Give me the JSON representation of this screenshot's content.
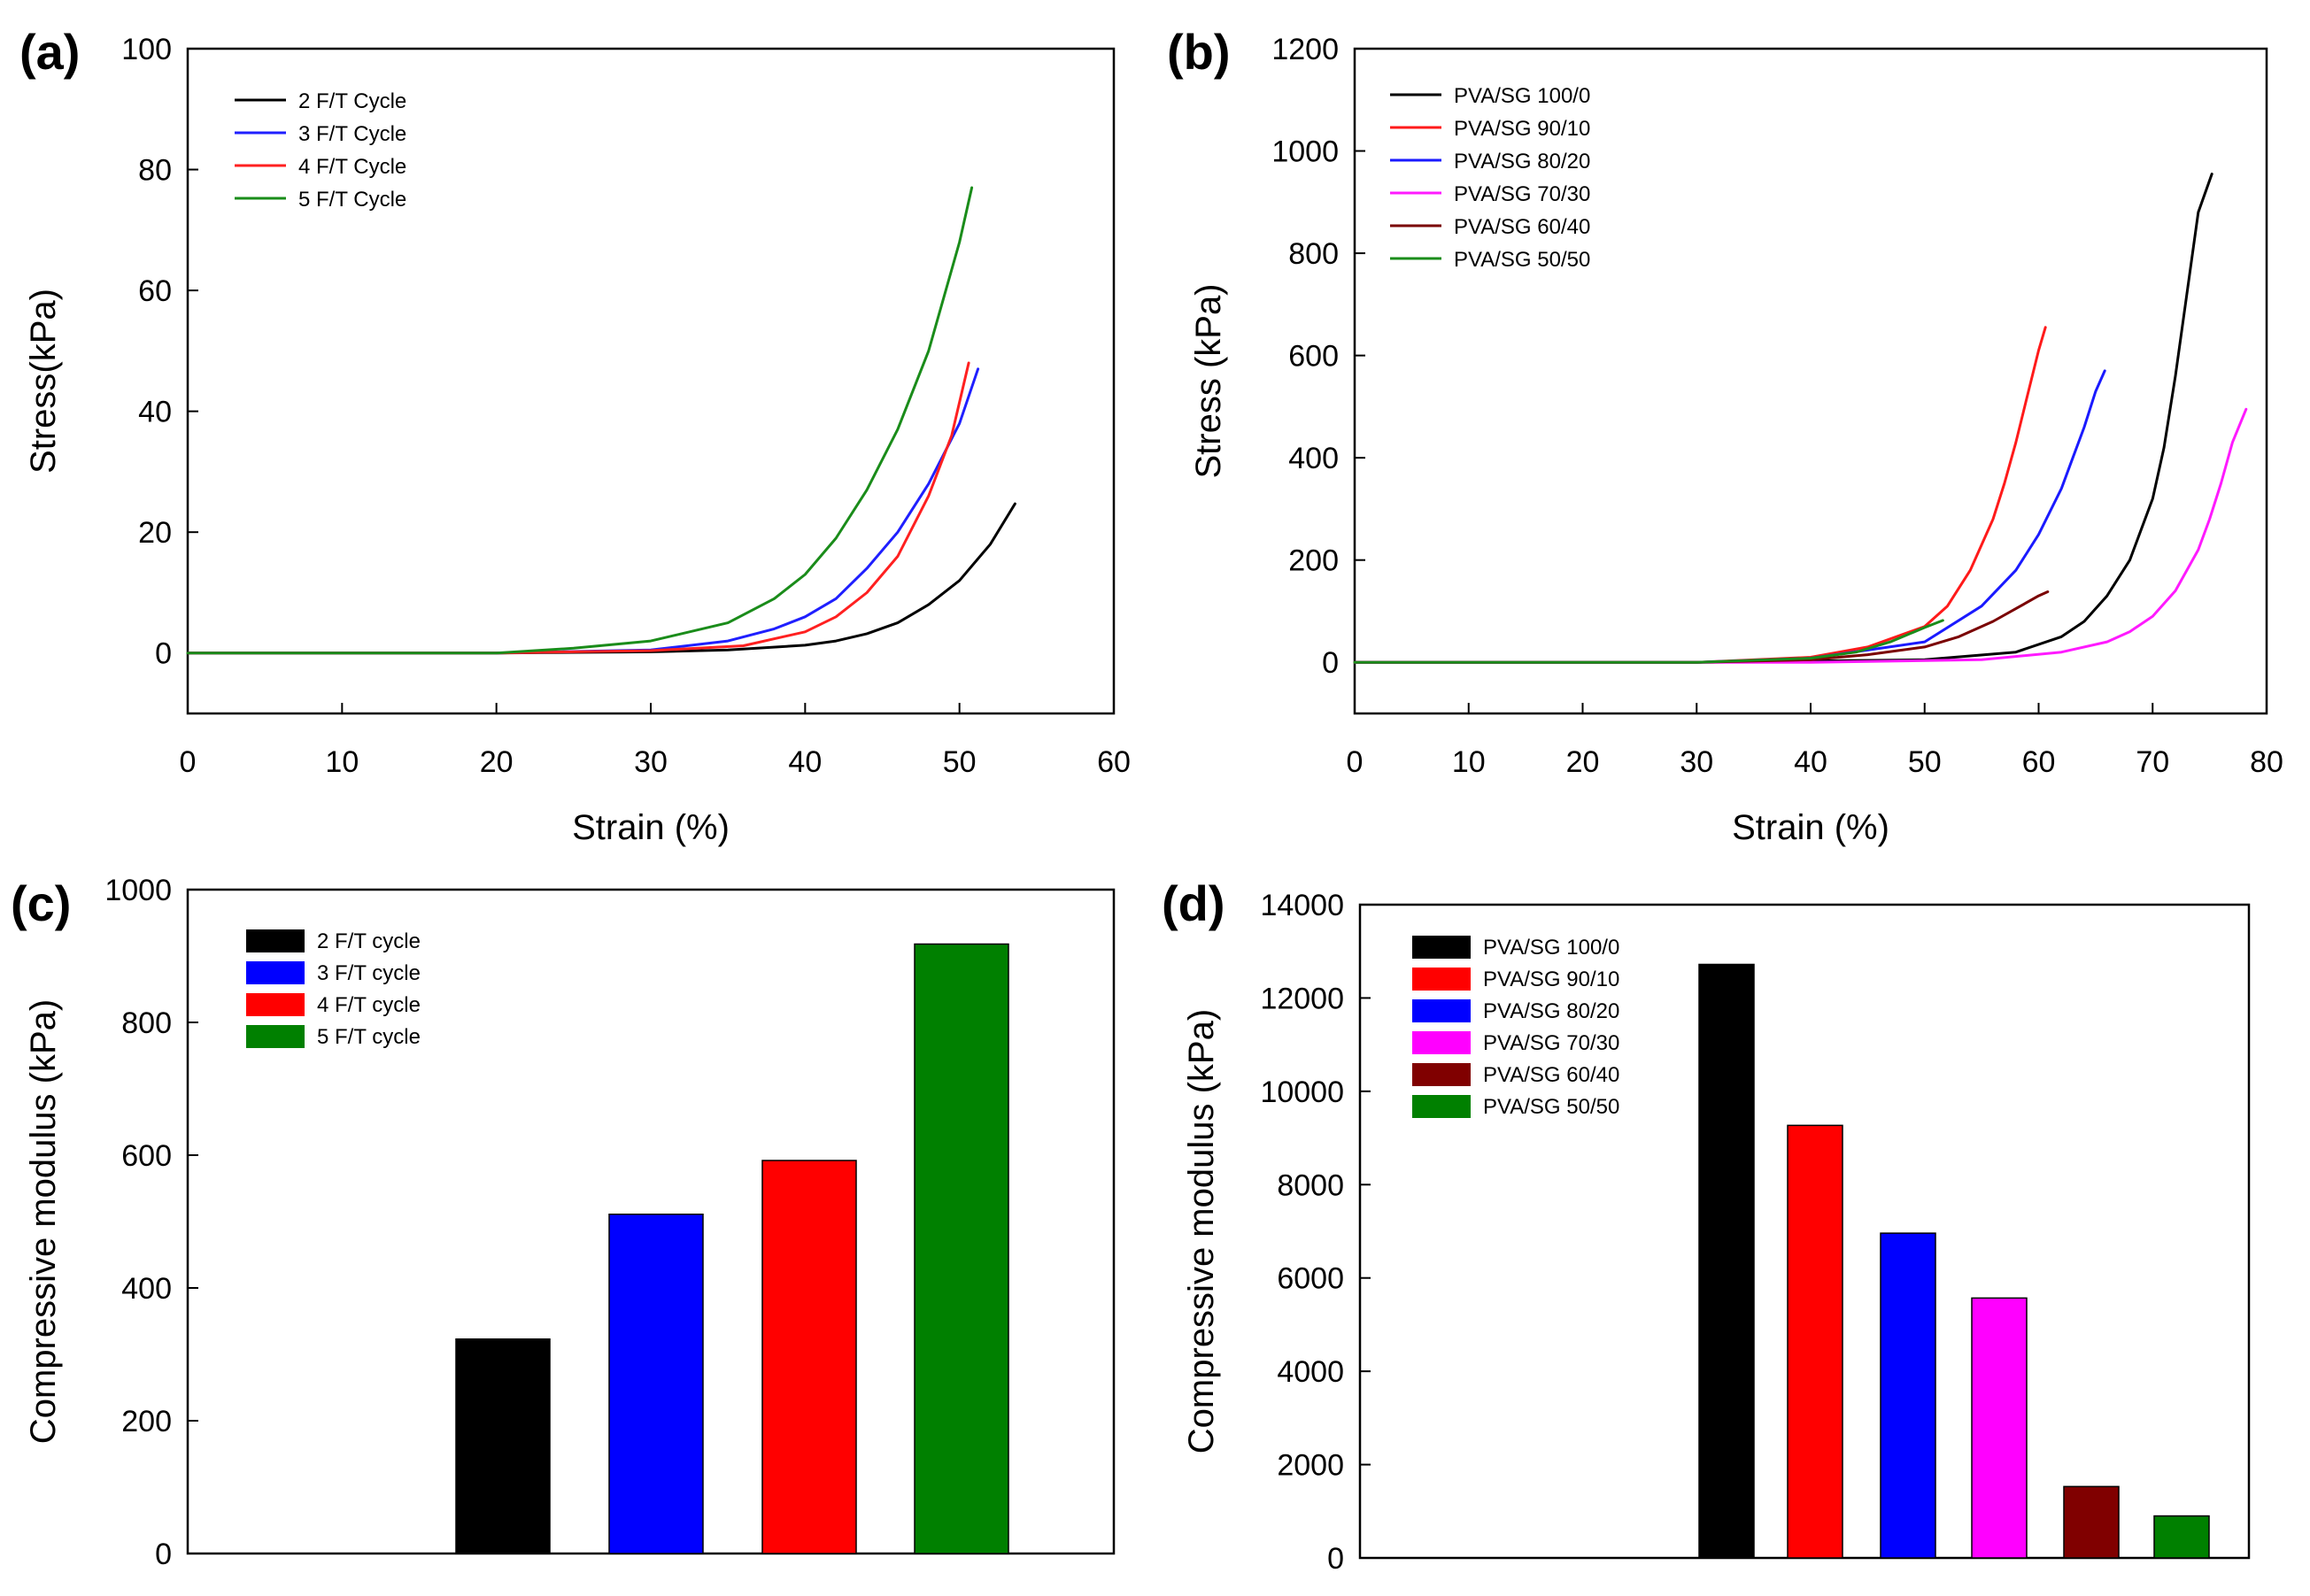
{
  "chart_data": [
    {
      "panel": "(a)",
      "type": "line",
      "xlabel": "Strain (%)",
      "ylabel": "Stress(kPa)",
      "xlim": [
        0,
        60
      ],
      "ylim": [
        -10,
        100
      ],
      "xticks": [
        0,
        10,
        20,
        30,
        40,
        50,
        60
      ],
      "yticks": [
        0,
        20,
        40,
        60,
        80,
        100
      ],
      "legend_position": "top-left",
      "series": [
        {
          "name": "2 F/T Cycle",
          "color": "#000000",
          "x": [
            0,
            20,
            30,
            35,
            40,
            42,
            44,
            46,
            48,
            50,
            52,
            53.6
          ],
          "y": [
            0,
            0,
            0.2,
            0.5,
            1.3,
            2.0,
            3.2,
            5.0,
            8.0,
            12.0,
            18.0,
            24.7
          ]
        },
        {
          "name": "3 F/T Cycle",
          "color": "#1f1fff",
          "x": [
            0,
            20,
            30,
            35,
            38,
            40,
            42,
            44,
            46,
            48,
            50,
            51.2
          ],
          "y": [
            0,
            0,
            0.5,
            2.0,
            4.0,
            6.0,
            9.0,
            14.0,
            20.0,
            28.0,
            38.0,
            47.0
          ]
        },
        {
          "name": "4 F/T Cycle",
          "color": "#ff2020",
          "x": [
            0,
            20,
            30,
            36,
            40,
            42,
            44,
            46,
            48,
            49.5,
            50.6
          ],
          "y": [
            0,
            0,
            0.4,
            1.2,
            3.5,
            6.0,
            10.0,
            16.0,
            26.0,
            36.0,
            48.0
          ]
        },
        {
          "name": "5 F/T Cycle",
          "color": "#1a8c1a",
          "x": [
            0,
            20,
            25,
            30,
            35,
            38,
            40,
            42,
            44,
            46,
            48,
            50,
            50.8
          ],
          "y": [
            0,
            0,
            0.8,
            2.0,
            5.0,
            9.0,
            13.0,
            19.0,
            27.0,
            37.0,
            50.0,
            68.0,
            77.0
          ]
        }
      ]
    },
    {
      "panel": "(b)",
      "type": "line",
      "xlabel": "Strain (%)",
      "ylabel": "Stress (kPa)",
      "xlim": [
        0,
        80
      ],
      "ylim": [
        -100,
        1200
      ],
      "xticks": [
        0,
        10,
        20,
        30,
        40,
        50,
        60,
        70,
        80
      ],
      "yticks": [
        0,
        200,
        400,
        600,
        800,
        1000,
        1200
      ],
      "legend_position": "top-left",
      "series": [
        {
          "name": "PVA/SG 100/0",
          "color": "#000000",
          "x": [
            0,
            30,
            50,
            58,
            62,
            64,
            66,
            68,
            70,
            71,
            72,
            73,
            74,
            75.2
          ],
          "y": [
            0,
            0,
            5,
            20,
            50,
            80,
            130,
            200,
            320,
            420,
            560,
            720,
            880,
            955
          ]
        },
        {
          "name": "PVA/SG 90/10",
          "color": "#ff1a1a",
          "x": [
            0,
            30,
            40,
            45,
            50,
            52,
            54,
            56,
            57,
            58,
            59,
            60,
            60.6
          ],
          "y": [
            0,
            0,
            10,
            30,
            70,
            110,
            180,
            280,
            350,
            430,
            520,
            610,
            655
          ]
        },
        {
          "name": "PVA/SG 80/20",
          "color": "#1a1aff",
          "x": [
            0,
            30,
            40,
            50,
            55,
            58,
            60,
            62,
            63,
            64,
            65,
            65.8
          ],
          "y": [
            0,
            0,
            8,
            40,
            110,
            180,
            250,
            340,
            400,
            460,
            530,
            570
          ]
        },
        {
          "name": "PVA/SG 70/30",
          "color": "#ff1aff",
          "x": [
            0,
            40,
            55,
            62,
            66,
            68,
            70,
            72,
            74,
            75,
            76,
            77,
            78.2
          ],
          "y": [
            0,
            0,
            5,
            20,
            40,
            60,
            90,
            140,
            220,
            280,
            350,
            430,
            495
          ]
        },
        {
          "name": "PVA/SG 60/40",
          "color": "#7a0000",
          "x": [
            0,
            30,
            40,
            45,
            50,
            53,
            56,
            58,
            60,
            60.8
          ],
          "y": [
            0,
            0,
            5,
            15,
            30,
            50,
            80,
            105,
            130,
            138
          ]
        },
        {
          "name": "PVA/SG 50/50",
          "color": "#1a8c1a",
          "x": [
            0,
            30,
            40,
            44,
            47,
            50,
            51.6
          ],
          "y": [
            0,
            0,
            8,
            20,
            40,
            68,
            82
          ]
        }
      ]
    },
    {
      "panel": "(c)",
      "type": "bar",
      "ylabel": "Compressive modulus (kPa)",
      "ylim": [
        0,
        1000
      ],
      "yticks": [
        0,
        200,
        400,
        600,
        800,
        1000
      ],
      "legend_position": "top-left",
      "categories": [
        "2 F/T cycle",
        "3 F/T cycle",
        "4 F/T cycle",
        "5 F/T cycle"
      ],
      "values": [
        323,
        511,
        592,
        918
      ],
      "colors": [
        "#000000",
        "#0000ff",
        "#ff0000",
        "#008000"
      ]
    },
    {
      "panel": "(d)",
      "type": "bar",
      "ylabel": "Compressive modulus (kPa)",
      "ylim": [
        0,
        14000
      ],
      "yticks": [
        0,
        2000,
        4000,
        6000,
        8000,
        10000,
        12000,
        14000
      ],
      "legend_position": "top-left",
      "categories": [
        "PVA/SG 100/0",
        "PVA/SG 90/10",
        "PVA/SG 80/20",
        "PVA/SG 70/30",
        "PVA/SG 60/40",
        "PVA/SG 50/50"
      ],
      "values": [
        12720,
        9270,
        6960,
        5570,
        1530,
        900
      ],
      "colors": [
        "#000000",
        "#ff0000",
        "#0000ff",
        "#ff00ff",
        "#800000",
        "#008000"
      ]
    }
  ]
}
